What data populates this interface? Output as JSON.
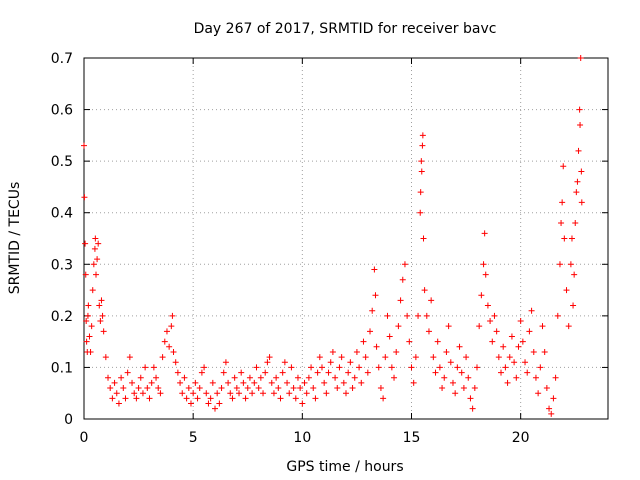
{
  "chart_data": {
    "type": "scatter",
    "title": "Day 267 of 2017, SRMTID for receiver bavc",
    "xlabel": "GPS time / hours",
    "ylabel": "SRMTID / TECUs",
    "xlim": [
      0,
      24
    ],
    "ylim": [
      0,
      0.7
    ],
    "xticks": [
      0,
      5,
      10,
      15,
      20
    ],
    "yticks": [
      0,
      0.1,
      0.2,
      0.3,
      0.4,
      0.5,
      0.6,
      0.7
    ],
    "grid": true,
    "marker": "+",
    "color": "#ff0000",
    "series": [
      {
        "name": "SRMTID",
        "points": [
          [
            0.0,
            0.53
          ],
          [
            0.02,
            0.43
          ],
          [
            0.05,
            0.34
          ],
          [
            0.08,
            0.28
          ],
          [
            0.1,
            0.19
          ],
          [
            0.12,
            0.15
          ],
          [
            0.15,
            0.13
          ],
          [
            0.18,
            0.2
          ],
          [
            0.2,
            0.22
          ],
          [
            0.25,
            0.16
          ],
          [
            0.3,
            0.13
          ],
          [
            0.35,
            0.18
          ],
          [
            0.4,
            0.25
          ],
          [
            0.45,
            0.3
          ],
          [
            0.5,
            0.33
          ],
          [
            0.52,
            0.35
          ],
          [
            0.55,
            0.28
          ],
          [
            0.6,
            0.31
          ],
          [
            0.65,
            0.34
          ],
          [
            0.7,
            0.22
          ],
          [
            0.75,
            0.19
          ],
          [
            0.8,
            0.23
          ],
          [
            0.85,
            0.2
          ],
          [
            0.9,
            0.17
          ],
          [
            1.0,
            0.12
          ],
          [
            1.1,
            0.08
          ],
          [
            1.2,
            0.06
          ],
          [
            1.3,
            0.04
          ],
          [
            1.4,
            0.07
          ],
          [
            1.5,
            0.05
          ],
          [
            1.6,
            0.03
          ],
          [
            1.7,
            0.08
          ],
          [
            1.8,
            0.06
          ],
          [
            1.9,
            0.04
          ],
          [
            2.0,
            0.09
          ],
          [
            2.1,
            0.12
          ],
          [
            2.2,
            0.07
          ],
          [
            2.3,
            0.05
          ],
          [
            2.4,
            0.04
          ],
          [
            2.5,
            0.06
          ],
          [
            2.6,
            0.08
          ],
          [
            2.7,
            0.05
          ],
          [
            2.8,
            0.1
          ],
          [
            2.9,
            0.06
          ],
          [
            3.0,
            0.04
          ],
          [
            3.1,
            0.07
          ],
          [
            3.2,
            0.1
          ],
          [
            3.3,
            0.08
          ],
          [
            3.4,
            0.06
          ],
          [
            3.5,
            0.05
          ],
          [
            3.6,
            0.12
          ],
          [
            3.7,
            0.15
          ],
          [
            3.8,
            0.17
          ],
          [
            3.9,
            0.14
          ],
          [
            4.0,
            0.18
          ],
          [
            4.05,
            0.2
          ],
          [
            4.1,
            0.13
          ],
          [
            4.2,
            0.11
          ],
          [
            4.3,
            0.09
          ],
          [
            4.4,
            0.07
          ],
          [
            4.5,
            0.05
          ],
          [
            4.6,
            0.08
          ],
          [
            4.7,
            0.04
          ],
          [
            4.8,
            0.06
          ],
          [
            4.9,
            0.03
          ],
          [
            5.0,
            0.05
          ],
          [
            5.1,
            0.07
          ],
          [
            5.2,
            0.04
          ],
          [
            5.3,
            0.06
          ],
          [
            5.4,
            0.09
          ],
          [
            5.5,
            0.1
          ],
          [
            5.6,
            0.05
          ],
          [
            5.7,
            0.03
          ],
          [
            5.8,
            0.04
          ],
          [
            5.9,
            0.07
          ],
          [
            6.0,
            0.02
          ],
          [
            6.1,
            0.05
          ],
          [
            6.2,
            0.03
          ],
          [
            6.3,
            0.06
          ],
          [
            6.4,
            0.09
          ],
          [
            6.5,
            0.11
          ],
          [
            6.6,
            0.07
          ],
          [
            6.7,
            0.05
          ],
          [
            6.8,
            0.04
          ],
          [
            6.9,
            0.08
          ],
          [
            7.0,
            0.06
          ],
          [
            7.1,
            0.05
          ],
          [
            7.2,
            0.09
          ],
          [
            7.3,
            0.07
          ],
          [
            7.4,
            0.04
          ],
          [
            7.5,
            0.06
          ],
          [
            7.6,
            0.08
          ],
          [
            7.7,
            0.05
          ],
          [
            7.8,
            0.07
          ],
          [
            7.9,
            0.1
          ],
          [
            8.0,
            0.06
          ],
          [
            8.1,
            0.08
          ],
          [
            8.2,
            0.05
          ],
          [
            8.3,
            0.09
          ],
          [
            8.4,
            0.11
          ],
          [
            8.5,
            0.12
          ],
          [
            8.6,
            0.07
          ],
          [
            8.7,
            0.05
          ],
          [
            8.8,
            0.08
          ],
          [
            8.9,
            0.06
          ],
          [
            9.0,
            0.04
          ],
          [
            9.1,
            0.09
          ],
          [
            9.2,
            0.11
          ],
          [
            9.3,
            0.07
          ],
          [
            9.4,
            0.05
          ],
          [
            9.5,
            0.1
          ],
          [
            9.6,
            0.06
          ],
          [
            9.7,
            0.04
          ],
          [
            9.8,
            0.08
          ],
          [
            9.9,
            0.06
          ],
          [
            10.0,
            0.03
          ],
          [
            10.1,
            0.07
          ],
          [
            10.2,
            0.05
          ],
          [
            10.3,
            0.08
          ],
          [
            10.4,
            0.1
          ],
          [
            10.5,
            0.06
          ],
          [
            10.6,
            0.04
          ],
          [
            10.7,
            0.09
          ],
          [
            10.8,
            0.12
          ],
          [
            10.9,
            0.1
          ],
          [
            11.0,
            0.07
          ],
          [
            11.1,
            0.05
          ],
          [
            11.2,
            0.09
          ],
          [
            11.3,
            0.11
          ],
          [
            11.4,
            0.13
          ],
          [
            11.5,
            0.08
          ],
          [
            11.6,
            0.06
          ],
          [
            11.7,
            0.1
          ],
          [
            11.8,
            0.12
          ],
          [
            11.9,
            0.07
          ],
          [
            12.0,
            0.05
          ],
          [
            12.1,
            0.09
          ],
          [
            12.2,
            0.11
          ],
          [
            12.3,
            0.06
          ],
          [
            12.4,
            0.08
          ],
          [
            12.5,
            0.13
          ],
          [
            12.6,
            0.1
          ],
          [
            12.7,
            0.07
          ],
          [
            12.8,
            0.15
          ],
          [
            12.9,
            0.12
          ],
          [
            13.0,
            0.09
          ],
          [
            13.1,
            0.17
          ],
          [
            13.2,
            0.21
          ],
          [
            13.3,
            0.29
          ],
          [
            13.35,
            0.24
          ],
          [
            13.4,
            0.14
          ],
          [
            13.5,
            0.1
          ],
          [
            13.6,
            0.06
          ],
          [
            13.7,
            0.04
          ],
          [
            13.8,
            0.12
          ],
          [
            13.9,
            0.2
          ],
          [
            14.0,
            0.16
          ],
          [
            14.1,
            0.1
          ],
          [
            14.2,
            0.08
          ],
          [
            14.3,
            0.13
          ],
          [
            14.4,
            0.18
          ],
          [
            14.5,
            0.23
          ],
          [
            14.6,
            0.27
          ],
          [
            14.7,
            0.3
          ],
          [
            14.8,
            0.2
          ],
          [
            14.9,
            0.15
          ],
          [
            15.0,
            0.1
          ],
          [
            15.1,
            0.07
          ],
          [
            15.2,
            0.12
          ],
          [
            15.3,
            0.2
          ],
          [
            15.4,
            0.4
          ],
          [
            15.42,
            0.44
          ],
          [
            15.45,
            0.5
          ],
          [
            15.47,
            0.48
          ],
          [
            15.5,
            0.53
          ],
          [
            15.52,
            0.55
          ],
          [
            15.55,
            0.35
          ],
          [
            15.6,
            0.25
          ],
          [
            15.7,
            0.2
          ],
          [
            15.8,
            0.17
          ],
          [
            15.9,
            0.23
          ],
          [
            16.0,
            0.12
          ],
          [
            16.1,
            0.09
          ],
          [
            16.2,
            0.15
          ],
          [
            16.3,
            0.1
          ],
          [
            16.4,
            0.06
          ],
          [
            16.5,
            0.08
          ],
          [
            16.6,
            0.13
          ],
          [
            16.7,
            0.18
          ],
          [
            16.8,
            0.11
          ],
          [
            16.9,
            0.07
          ],
          [
            17.0,
            0.05
          ],
          [
            17.1,
            0.1
          ],
          [
            17.2,
            0.14
          ],
          [
            17.3,
            0.09
          ],
          [
            17.4,
            0.06
          ],
          [
            17.5,
            0.12
          ],
          [
            17.6,
            0.08
          ],
          [
            17.7,
            0.04
          ],
          [
            17.8,
            0.02
          ],
          [
            17.9,
            0.06
          ],
          [
            18.0,
            0.1
          ],
          [
            18.1,
            0.18
          ],
          [
            18.2,
            0.24
          ],
          [
            18.3,
            0.3
          ],
          [
            18.35,
            0.36
          ],
          [
            18.4,
            0.28
          ],
          [
            18.5,
            0.22
          ],
          [
            18.6,
            0.19
          ],
          [
            18.7,
            0.15
          ],
          [
            18.8,
            0.2
          ],
          [
            18.9,
            0.17
          ],
          [
            19.0,
            0.12
          ],
          [
            19.1,
            0.09
          ],
          [
            19.2,
            0.14
          ],
          [
            19.3,
            0.1
          ],
          [
            19.4,
            0.07
          ],
          [
            19.5,
            0.12
          ],
          [
            19.6,
            0.16
          ],
          [
            19.7,
            0.11
          ],
          [
            19.8,
            0.08
          ],
          [
            19.9,
            0.14
          ],
          [
            20.0,
            0.19
          ],
          [
            20.1,
            0.15
          ],
          [
            20.2,
            0.11
          ],
          [
            20.3,
            0.09
          ],
          [
            20.4,
            0.17
          ],
          [
            20.5,
            0.21
          ],
          [
            20.6,
            0.13
          ],
          [
            20.7,
            0.08
          ],
          [
            20.8,
            0.05
          ],
          [
            20.9,
            0.1
          ],
          [
            21.0,
            0.18
          ],
          [
            21.1,
            0.13
          ],
          [
            21.2,
            0.06
          ],
          [
            21.3,
            0.02
          ],
          [
            21.4,
            0.01
          ],
          [
            21.5,
            0.04
          ],
          [
            21.6,
            0.08
          ],
          [
            21.7,
            0.2
          ],
          [
            21.8,
            0.3
          ],
          [
            21.85,
            0.38
          ],
          [
            21.9,
            0.42
          ],
          [
            21.95,
            0.49
          ],
          [
            22.0,
            0.35
          ],
          [
            22.1,
            0.25
          ],
          [
            22.2,
            0.18
          ],
          [
            22.3,
            0.3
          ],
          [
            22.35,
            0.35
          ],
          [
            22.4,
            0.22
          ],
          [
            22.45,
            0.28
          ],
          [
            22.5,
            0.38
          ],
          [
            22.55,
            0.44
          ],
          [
            22.6,
            0.46
          ],
          [
            22.65,
            0.52
          ],
          [
            22.7,
            0.6
          ],
          [
            22.72,
            0.57
          ],
          [
            22.75,
            0.7
          ],
          [
            22.78,
            0.48
          ],
          [
            22.8,
            0.42
          ]
        ]
      }
    ]
  }
}
